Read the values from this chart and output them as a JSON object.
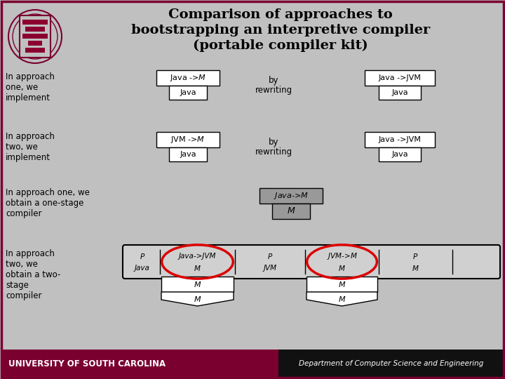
{
  "title_line1": "Comparison of approaches to",
  "title_line2": "bootstrapping an interpretive compiler",
  "title_line3": "(portable compiler kit)",
  "bg_color": "#c0c0c0",
  "border_color": "#7a0030",
  "footer_left_text": "UNIVERSITY OF SOUTH CAROLINA",
  "footer_left_bg": "#7a0030",
  "footer_right_text": "Department of Computer Science and Engineering",
  "footer_right_bg": "#111111",
  "red_circle_color": "#dd0000",
  "box_white": "#ffffff",
  "box_gray": "#aaaaaa"
}
